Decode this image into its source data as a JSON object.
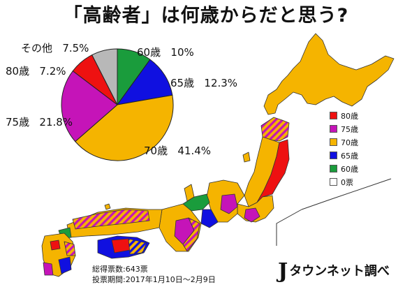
{
  "title": "「高齢者」は何歳からだと思う?",
  "chart_data": {
    "type": "pie",
    "slices": [
      {
        "label": "60歳",
        "value": 10.0,
        "value_text": "10%",
        "color": "#1a9c3c"
      },
      {
        "label": "65歳",
        "value": 12.3,
        "value_text": "12.3%",
        "color": "#1010e0"
      },
      {
        "label": "70歳",
        "value": 41.4,
        "value_text": "41.4%",
        "color": "#f5b400"
      },
      {
        "label": "75歳",
        "value": 21.8,
        "value_text": "21.8%",
        "color": "#c514b8"
      },
      {
        "label": "80歳",
        "value": 7.2,
        "value_text": "7.2%",
        "color": "#ee1111"
      },
      {
        "label": "その他",
        "value": 7.5,
        "value_text": "7.5%",
        "color": "#b8b8b8"
      }
    ]
  },
  "legend": [
    {
      "label": "80歳",
      "color": "#ee1111"
    },
    {
      "label": "75歳",
      "color": "#c514b8"
    },
    {
      "label": "70歳",
      "color": "#f5b400"
    },
    {
      "label": "65歳",
      "color": "#1010e0"
    },
    {
      "label": "60歳",
      "color": "#1a9c3c"
    },
    {
      "label": "0票",
      "color": "#ffffff"
    }
  ],
  "footer": {
    "total_votes": "総得票数:643票",
    "period": "投票期間:2017年1月10日〜2月9日"
  },
  "logo": {
    "j": "J",
    "text": "タウンネット調べ"
  }
}
